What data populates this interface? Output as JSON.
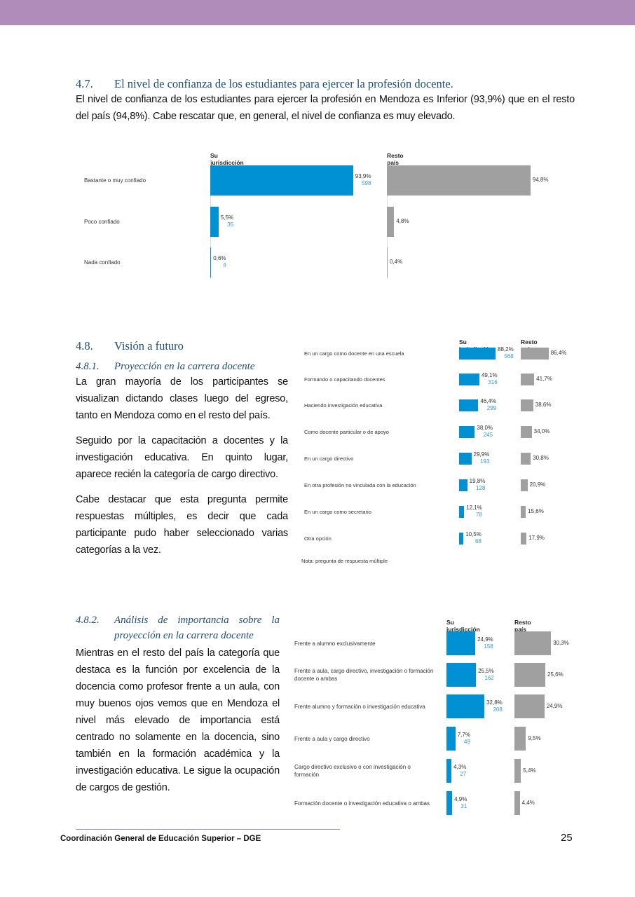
{
  "section_47": {
    "number": "4.7.",
    "title": "El nivel de confianza de los estudiantes para ejercer la profesión docente.",
    "paragraph": "El nivel de confianza de los estudiantes para ejercer la profesión en Mendoza es Inferior (93,9%) que en el resto del país (94,8%). Cabe rescatar que, en general, el nivel de confianza es muy elevado."
  },
  "section_48": {
    "number": "4.8.",
    "title": "Visión a futuro",
    "sub1_number": "4.8.1.",
    "sub1_title": "Proyección en la carrera docente",
    "p1": "La gran mayoría de los participantes se visualizan dictando clases luego del egreso, tanto en Mendoza como en el resto del país.",
    "p2": "Seguido por la capacitación a docentes y la investigación educativa. En quinto lugar, aparece recién la categoría de cargo directivo.",
    "p3": "Cabe destacar que esta pregunta permite respuestas múltiples, es decir que cada participante pudo haber seleccionado varias categorías a la vez.",
    "sub2_number": "4.8.2.",
    "sub2_title": "Análisis de importancia sobre la proyección en la carrera docente",
    "p4": "Mientras en el resto del país la categoría que destaca es la función por excelencia de la docencia como profesor frente a un aula, con muy buenos ojos vemos que en Mendoza el nivel más elevado de importancia está centrado no solamente en la docencia, sino también en la formación académica y la investigación educativa. Le sigue la ocupación de cargos de gestión."
  },
  "colors": {
    "jurisdiccion": "#0090d4",
    "resto": "#a0a0a0",
    "count_text": "#3399dd",
    "band": "#b08cba"
  },
  "chart_data": [
    {
      "type": "bar",
      "orientation": "horizontal",
      "col_headers": [
        "Su jurisdicción",
        "Resto país"
      ],
      "categories": [
        "Bastante o muy confiado",
        "Poco confiado",
        "Nada confiado"
      ],
      "series": [
        {
          "name": "Su jurisdicción",
          "values": [
            93.9,
            5.5,
            0.6
          ],
          "labels": [
            "93,9%",
            "5,5%",
            "0,6%"
          ],
          "counts": [
            "598",
            "35",
            "4"
          ]
        },
        {
          "name": "Resto país",
          "values": [
            94.8,
            4.8,
            0.4
          ],
          "labels": [
            "94,8%",
            "4,8%",
            "0,4%"
          ]
        }
      ]
    },
    {
      "type": "bar",
      "orientation": "horizontal",
      "col_headers": [
        "Su jurisdicción",
        "Resto país"
      ],
      "categories": [
        "En un cargo como docente en una escuela",
        "Formando o capacitando docentes",
        "Haciendo investigación educativa",
        "Como docente particular o de apoyo",
        "En un cargo directivo",
        "En otra profesión no vinculada con la educación",
        "En un cargo como secretario",
        "Otra opción"
      ],
      "series": [
        {
          "name": "Su jurisdicción",
          "values": [
            88.2,
            49.1,
            46.4,
            38.0,
            29.9,
            19.8,
            12.1,
            10.5
          ],
          "labels": [
            "88,2%",
            "49,1%",
            "46,4%",
            "38,0%",
            "29,9%",
            "19,8%",
            "12,1%",
            "10,5%"
          ],
          "counts": [
            "568",
            "316",
            "299",
            "245",
            "193",
            "128",
            "78",
            "68"
          ]
        },
        {
          "name": "Resto país",
          "values": [
            86.4,
            41.7,
            38.6,
            34.0,
            30.8,
            20.9,
            15.6,
            17.9
          ],
          "labels": [
            "86,4%",
            "41,7%",
            "38,6%",
            "34,0%",
            "30,8%",
            "20,9%",
            "15,6%",
            "17,9%"
          ]
        }
      ],
      "note": "Nota: pregunta de respuesta múltiple"
    },
    {
      "type": "bar",
      "orientation": "horizontal",
      "col_headers": [
        "Su jurisdicción",
        "Resto país"
      ],
      "categories": [
        "Frente a alumno exclusivamente",
        "Frente a aula, cargo directivo, investigación o formación docente o ambas",
        "Frente alumno y formación o investigación educativa",
        "Frente a aula y cargo directivo",
        "Cargo directivo exclusivo o con investigación o formación",
        "Formación docente o investigación educativa o ambas"
      ],
      "series": [
        {
          "name": "Su jurisdicción",
          "values": [
            24.9,
            25.5,
            32.8,
            7.7,
            4.3,
            4.9
          ],
          "labels": [
            "24,9%",
            "25,5%",
            "32,8%",
            "7,7%",
            "4,3%",
            "4,9%"
          ],
          "counts": [
            "158",
            "162",
            "208",
            "49",
            "27",
            "31"
          ]
        },
        {
          "name": "Resto país",
          "values": [
            30.3,
            25.6,
            24.9,
            9.5,
            5.4,
            4.4
          ],
          "labels": [
            "30,3%",
            "25,6%",
            "24,9%",
            "9,5%",
            "5,4%",
            "4,4%"
          ]
        }
      ]
    }
  ],
  "footer": {
    "text": "Coordinación General de Educación Superior – DGE",
    "page": "25"
  }
}
